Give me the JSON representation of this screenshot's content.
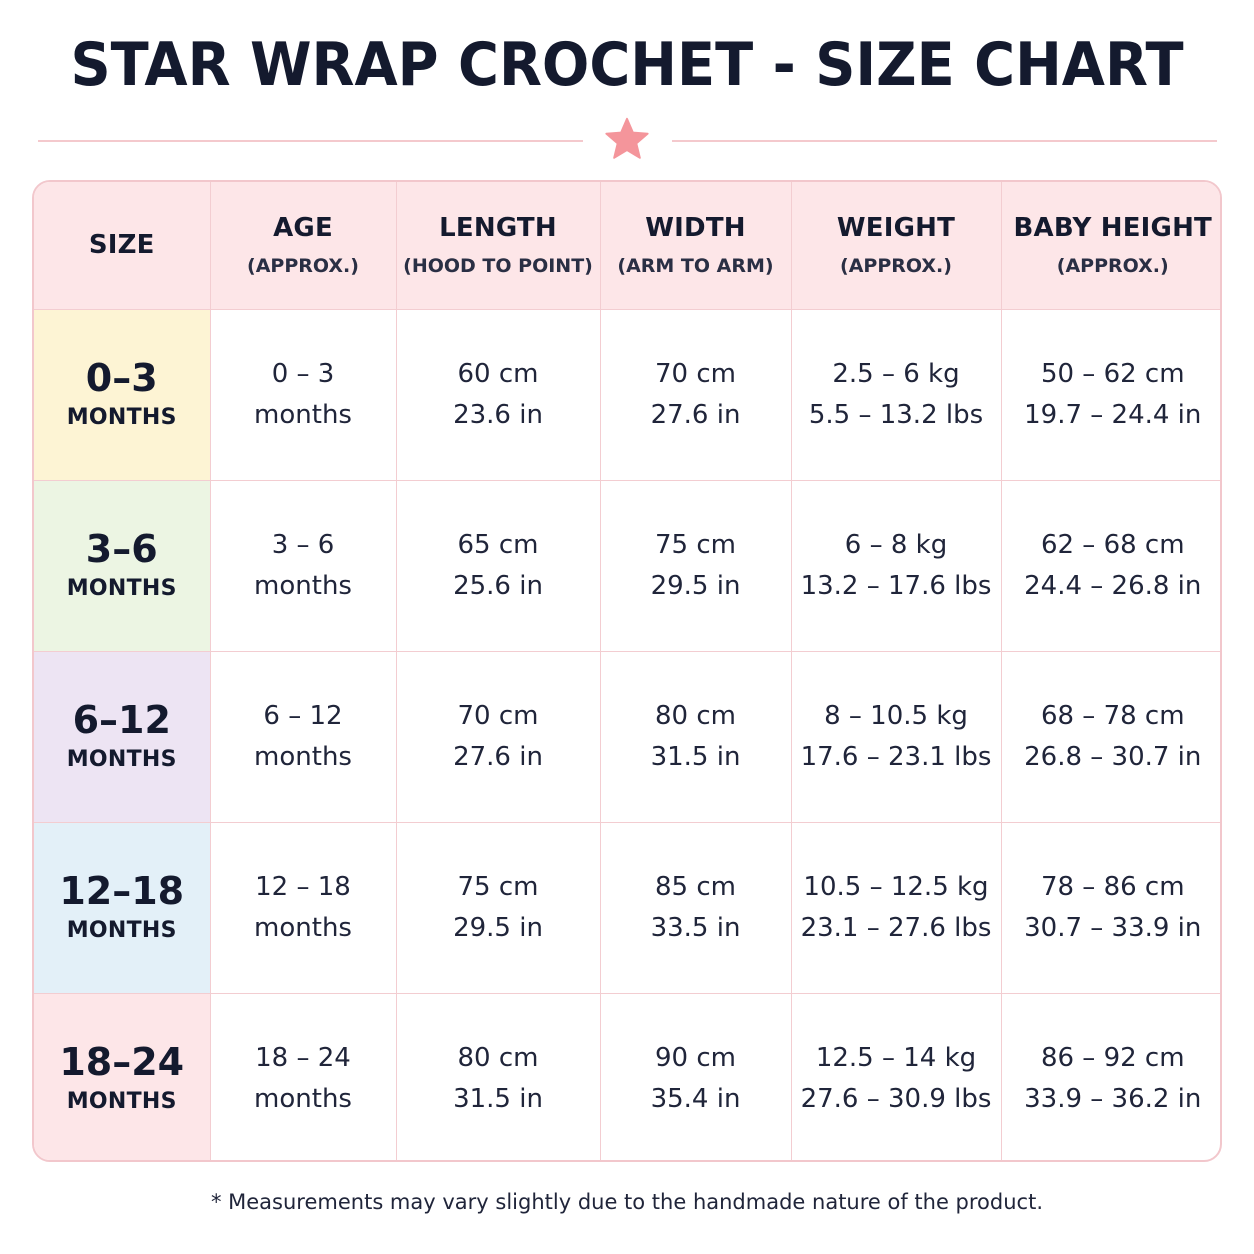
{
  "title": "STAR WRAP CROCHET - SIZE CHART",
  "colors": {
    "header_bg": "#fde6e8",
    "star": "#f4959b",
    "row_0_3": "#fdf4d4",
    "row_3_6": "#ecf5e3",
    "row_6_12": "#ede4f3",
    "row_12_18": "#e3f0f8",
    "row_18_24": "#fde6e8"
  },
  "headers": [
    {
      "main": "SIZE",
      "sub": ""
    },
    {
      "main": "AGE",
      "sub": "(APPROX.)"
    },
    {
      "main": "LENGTH",
      "sub": "(HOOD TO POINT)"
    },
    {
      "main": "WIDTH",
      "sub": "(ARM TO ARM)"
    },
    {
      "main": "WEIGHT",
      "sub": "(APPROX.)"
    },
    {
      "main": "BABY HEIGHT",
      "sub": "(APPROX.)"
    }
  ],
  "rows": [
    {
      "size": "0–3",
      "size_unit": "MONTHS",
      "age": [
        "0 – 3",
        "months"
      ],
      "length": [
        "60 cm",
        "23.6 in"
      ],
      "width": [
        "70 cm",
        "27.6 in"
      ],
      "weight": [
        "2.5 – 6 kg",
        "5.5 – 13.2 lbs"
      ],
      "height": [
        "50 – 62 cm",
        "19.7 – 24.4 in"
      ]
    },
    {
      "size": "3–6",
      "size_unit": "MONTHS",
      "age": [
        "3 – 6",
        "months"
      ],
      "length": [
        "65 cm",
        "25.6 in"
      ],
      "width": [
        "75 cm",
        "29.5 in"
      ],
      "weight": [
        "6 – 8 kg",
        "13.2 – 17.6 lbs"
      ],
      "height": [
        "62 – 68 cm",
        "24.4 – 26.8 in"
      ]
    },
    {
      "size": "6–12",
      "size_unit": "MONTHS",
      "age": [
        "6 – 12",
        "months"
      ],
      "length": [
        "70 cm",
        "27.6 in"
      ],
      "width": [
        "80 cm",
        "31.5 in"
      ],
      "weight": [
        "8 – 10.5 kg",
        "17.6 – 23.1 lbs"
      ],
      "height": [
        "68 – 78 cm",
        "26.8 – 30.7 in"
      ]
    },
    {
      "size": "12–18",
      "size_unit": "MONTHS",
      "age": [
        "12 – 18",
        "months"
      ],
      "length": [
        "75 cm",
        "29.5 in"
      ],
      "width": [
        "85 cm",
        "33.5 in"
      ],
      "weight": [
        "10.5 – 12.5 kg",
        "23.1 – 27.6 lbs"
      ],
      "height": [
        "78 – 86 cm",
        "30.7 – 33.9 in"
      ]
    },
    {
      "size": "18–24",
      "size_unit": "MONTHS",
      "age": [
        "18 – 24",
        "months"
      ],
      "length": [
        "80 cm",
        "31.5 in"
      ],
      "width": [
        "90 cm",
        "35.4 in"
      ],
      "weight": [
        "12.5 – 14 kg",
        "27.6 – 30.9 lbs"
      ],
      "height": [
        "86 – 92 cm",
        "33.9 – 36.2 in"
      ]
    }
  ],
  "footnote": "* Measurements may vary slightly due to the handmade nature of the product."
}
